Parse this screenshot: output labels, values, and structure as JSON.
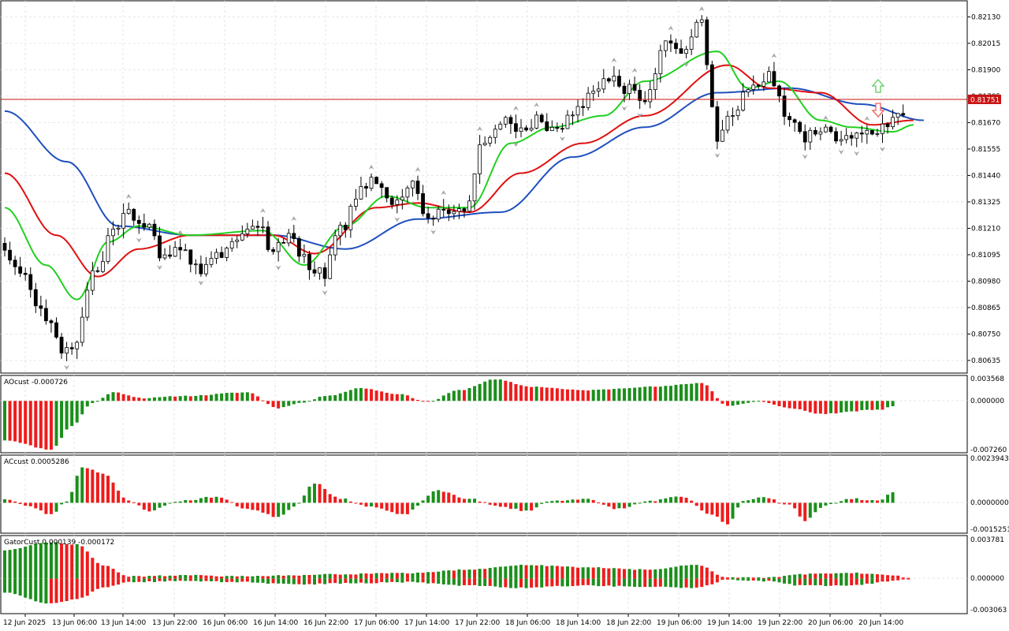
{
  "colors": {
    "background": "#ffffff",
    "grid": "#e6e6e6",
    "axis": "#000000",
    "bull_body": "#ffffff",
    "bear_body": "#000000",
    "candle_outline": "#000000",
    "jaw": "#1f4fbf",
    "teeth": "#e01010",
    "lips": "#20d020",
    "bid_line": "#c81414",
    "price_tag_bg": "#c81414",
    "price_tag_text": "#ffffff",
    "histogram_up": "#1b8f1b",
    "histogram_down": "#ee1c1c",
    "fractal": "#a8a8a8",
    "buy_arrow": "#5ccc5c",
    "sell_arrow": "#f05a5a"
  },
  "main_chart": {
    "y_ticks": [
      "0.82130",
      "0.82015",
      "0.81900",
      "0.81785",
      "0.81670",
      "0.81555",
      "0.81440",
      "0.81325",
      "0.81210",
      "0.81095",
      "0.80980",
      "0.80865",
      "0.80750",
      "0.80635"
    ],
    "current_price": "0.81751"
  },
  "x_axis_labels": [
    "12 Jun 2025",
    "13 Jun 06:00",
    "13 Jun 14:00",
    "13 Jun 22:00",
    "16 Jun 06:00",
    "16 Jun 14:00",
    "16 Jun 22:00",
    "17 Jun 06:00",
    "17 Jun 14:00",
    "17 Jun 22:00",
    "18 Jun 06:00",
    "18 Jun 14:00",
    "18 Jun 22:00",
    "19 Jun 06:00",
    "19 Jun 14:00",
    "19 Jun 22:00",
    "20 Jun 06:00",
    "20 Jun 14:00"
  ],
  "ao_panel": {
    "title": "AOcust -0.000726",
    "y_ticks": [
      "0.003568",
      "0.000000",
      "-0.007260"
    ]
  },
  "ac_panel": {
    "title": "ACcust 0.0005286",
    "y_ticks": [
      "0.0023943",
      "0.0000000",
      "-0.0015251"
    ]
  },
  "gator_panel": {
    "title": "GatorCust 0.000139 -0.000172",
    "y_ticks": [
      "0.003781",
      "0.000000",
      "-0.003063"
    ]
  },
  "chart_data": [
    {
      "type": "candlestick",
      "symbol_panel": "main",
      "ylim": [
        0.8058,
        0.822
      ],
      "anchors": [
        [
          0,
          0.8112
        ],
        [
          4,
          0.8098
        ],
        [
          8,
          0.8082
        ],
        [
          11,
          0.8068
        ],
        [
          13,
          0.807
        ],
        [
          17,
          0.81
        ],
        [
          21,
          0.8118
        ],
        [
          24,
          0.8128
        ],
        [
          27,
          0.8122
        ],
        [
          31,
          0.8108
        ],
        [
          34,
          0.8113
        ],
        [
          38,
          0.8102
        ],
        [
          42,
          0.811
        ],
        [
          45,
          0.8115
        ],
        [
          49,
          0.8122
        ],
        [
          52,
          0.8112
        ],
        [
          55,
          0.8118
        ],
        [
          59,
          0.8105
        ],
        [
          62,
          0.8102
        ],
        [
          65,
          0.812
        ],
        [
          69,
          0.8138
        ],
        [
          72,
          0.8142
        ],
        [
          75,
          0.813
        ],
        [
          79,
          0.814
        ],
        [
          82,
          0.8125
        ],
        [
          86,
          0.8128
        ],
        [
          89,
          0.813
        ],
        [
          93,
          0.816
        ],
        [
          96,
          0.8168
        ],
        [
          100,
          0.8162
        ],
        [
          103,
          0.8168
        ],
        [
          107,
          0.8162
        ],
        [
          110,
          0.817
        ],
        [
          114,
          0.8178
        ],
        [
          117,
          0.8185
        ],
        [
          121,
          0.8182
        ],
        [
          124,
          0.8175
        ],
        [
          128,
          0.82
        ],
        [
          131,
          0.8198
        ],
        [
          135,
          0.8212
        ],
        [
          137,
          0.8175
        ],
        [
          138,
          0.816
        ],
        [
          141,
          0.8172
        ],
        [
          145,
          0.8185
        ],
        [
          148,
          0.8188
        ],
        [
          152,
          0.817
        ],
        [
          155,
          0.816
        ],
        [
          159,
          0.8165
        ],
        [
          162,
          0.8158
        ],
        [
          166,
          0.8162
        ],
        [
          169,
          0.8162
        ],
        [
          172,
          0.817
        ],
        [
          174,
          0.8172
        ]
      ],
      "alligator": {
        "jaw": [
          [
            0,
            0.8172
          ],
          [
            12,
            0.815
          ],
          [
            22,
            0.8122
          ],
          [
            36,
            0.8118
          ],
          [
            52,
            0.8118
          ],
          [
            66,
            0.8112
          ],
          [
            80,
            0.8125
          ],
          [
            96,
            0.8128
          ],
          [
            110,
            0.8152
          ],
          [
            124,
            0.8165
          ],
          [
            138,
            0.818
          ],
          [
            152,
            0.8182
          ],
          [
            166,
            0.8175
          ],
          [
            178,
            0.8168
          ]
        ],
        "teeth": [
          [
            0,
            0.8145
          ],
          [
            10,
            0.8118
          ],
          [
            18,
            0.81
          ],
          [
            26,
            0.8112
          ],
          [
            36,
            0.8118
          ],
          [
            52,
            0.8118
          ],
          [
            60,
            0.811
          ],
          [
            72,
            0.813
          ],
          [
            80,
            0.8132
          ],
          [
            90,
            0.8128
          ],
          [
            100,
            0.8145
          ],
          [
            112,
            0.8158
          ],
          [
            124,
            0.817
          ],
          [
            140,
            0.8192
          ],
          [
            148,
            0.8182
          ],
          [
            158,
            0.818
          ],
          [
            168,
            0.8166
          ],
          [
            176,
            0.8168
          ]
        ],
        "lips": [
          [
            0,
            0.813
          ],
          [
            8,
            0.8105
          ],
          [
            14,
            0.809
          ],
          [
            20,
            0.8115
          ],
          [
            26,
            0.8122
          ],
          [
            36,
            0.8118
          ],
          [
            50,
            0.812
          ],
          [
            58,
            0.8105
          ],
          [
            66,
            0.8122
          ],
          [
            74,
            0.8135
          ],
          [
            82,
            0.813
          ],
          [
            90,
            0.813
          ],
          [
            98,
            0.8158
          ],
          [
            106,
            0.8165
          ],
          [
            116,
            0.817
          ],
          [
            124,
            0.8185
          ],
          [
            138,
            0.8198
          ],
          [
            144,
            0.8182
          ],
          [
            150,
            0.8185
          ],
          [
            158,
            0.8168
          ],
          [
            164,
            0.8165
          ],
          [
            172,
            0.8163
          ],
          [
            176,
            0.8166
          ]
        ]
      }
    },
    {
      "type": "histogram",
      "indicator": "AOcust",
      "ylim": [
        -0.00726,
        0.003568
      ],
      "anchors": [
        [
          0,
          -0.0055
        ],
        [
          9,
          -0.0068
        ],
        [
          13,
          -0.0035
        ],
        [
          17,
          -0.0003
        ],
        [
          21,
          0.0012
        ],
        [
          27,
          0.0004
        ],
        [
          35,
          0.0007
        ],
        [
          47,
          0.0012
        ],
        [
          53,
          -0.001
        ],
        [
          57,
          -0.0003
        ],
        [
          63,
          0.0008
        ],
        [
          69,
          0.0018
        ],
        [
          76,
          0.001
        ],
        [
          82,
          -0.0001
        ],
        [
          88,
          0.0015
        ],
        [
          95,
          0.003
        ],
        [
          102,
          0.002
        ],
        [
          112,
          0.0015
        ],
        [
          126,
          0.002
        ],
        [
          135,
          0.0025
        ],
        [
          140,
          -0.0007
        ],
        [
          146,
          -0.0001
        ],
        [
          152,
          -0.001
        ],
        [
          158,
          -0.0018
        ],
        [
          170,
          -0.0012
        ],
        [
          172,
          -0.0007
        ]
      ]
    },
    {
      "type": "histogram",
      "indicator": "ACcust",
      "ylim": [
        -0.0015251,
        0.0023943
      ],
      "anchors": [
        [
          0,
          0.0002
        ],
        [
          5,
          -0.0002
        ],
        [
          9,
          -0.0006
        ],
        [
          12,
          0.0001
        ],
        [
          15,
          0.0018
        ],
        [
          19,
          0.0015
        ],
        [
          24,
          0.0001
        ],
        [
          28,
          -0.0004
        ],
        [
          34,
          0.0001
        ],
        [
          41,
          0.0003
        ],
        [
          47,
          -0.0003
        ],
        [
          53,
          -0.0007
        ],
        [
          56,
          -0.0002
        ],
        [
          60,
          0.001
        ],
        [
          65,
          0.0002
        ],
        [
          71,
          -0.0002
        ],
        [
          77,
          -0.0006
        ],
        [
          84,
          0.0006
        ],
        [
          90,
          0.0002
        ],
        [
          96,
          -0.0002
        ],
        [
          101,
          -0.0004
        ],
        [
          106,
          0.0001
        ],
        [
          112,
          0.0002
        ],
        [
          119,
          -0.0003
        ],
        [
          125,
          0.0001
        ],
        [
          131,
          0.0003
        ],
        [
          137,
          -0.0006
        ],
        [
          140,
          -0.0011
        ],
        [
          143,
          0.0001
        ],
        [
          147,
          0.0003
        ],
        [
          152,
          -0.0001
        ],
        [
          155,
          -0.0009
        ],
        [
          159,
          -0.0001
        ],
        [
          164,
          0.0002
        ],
        [
          169,
          0.0001
        ],
        [
          172,
          0.0005
        ]
      ]
    },
    {
      "type": "histogram",
      "indicator": "GatorCust",
      "ylim": [
        -0.003063,
        0.003781
      ],
      "upper_anchors": [
        [
          0,
          0.0025
        ],
        [
          9,
          0.0032
        ],
        [
          14,
          0.003
        ],
        [
          19,
          0.0012
        ],
        [
          24,
          0.0002
        ],
        [
          36,
          0.0003
        ],
        [
          46,
          0.0002
        ],
        [
          56,
          0.0003
        ],
        [
          66,
          0.0004
        ],
        [
          78,
          0.0005
        ],
        [
          90,
          0.0008
        ],
        [
          100,
          0.0012
        ],
        [
          112,
          0.001
        ],
        [
          124,
          0.0008
        ],
        [
          134,
          0.0012
        ],
        [
          140,
          0.0001
        ],
        [
          148,
          0.0001
        ],
        [
          154,
          0.0004
        ],
        [
          164,
          0.0005
        ],
        [
          172,
          0.0003
        ],
        [
          175,
          0.0001
        ]
      ],
      "lower_anchors": [
        [
          0,
          -0.0012
        ],
        [
          9,
          -0.0022
        ],
        [
          14,
          -0.0018
        ],
        [
          19,
          -0.0008
        ],
        [
          24,
          -0.0003
        ],
        [
          36,
          -0.0002
        ],
        [
          46,
          -0.0003
        ],
        [
          56,
          -0.0005
        ],
        [
          66,
          -0.0004
        ],
        [
          78,
          -0.0003
        ],
        [
          90,
          -0.0006
        ],
        [
          100,
          -0.0008
        ],
        [
          112,
          -0.0006
        ],
        [
          124,
          -0.0007
        ],
        [
          134,
          -0.0008
        ],
        [
          140,
          -0.0001
        ],
        [
          148,
          -0.0002
        ],
        [
          154,
          -0.0006
        ],
        [
          164,
          -0.0006
        ],
        [
          172,
          -0.0002
        ],
        [
          175,
          0.0
        ]
      ]
    }
  ]
}
